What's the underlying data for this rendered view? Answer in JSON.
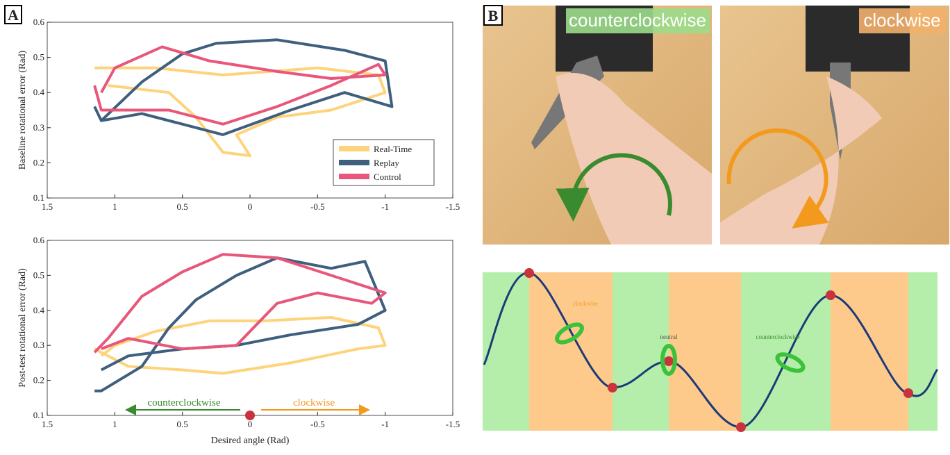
{
  "chart_data": [
    {
      "type": "line",
      "panel": "A",
      "ylabel": "Baseline rotational error (Rad)",
      "xlim": [
        1.5,
        -1.5
      ],
      "xticks": [
        1.5,
        1,
        0.5,
        0,
        -0.5,
        -1,
        -1.5
      ],
      "ylim": [
        0.1,
        0.6
      ],
      "yticks": [
        0.1,
        0.2,
        0.3,
        0.4,
        0.5,
        0.6
      ],
      "legend": "lower right",
      "series": [
        {
          "name": "Real-Time",
          "color": "#fdd47c",
          "x": [
            1.15,
            0.7,
            0.2,
            -0.5,
            -0.95,
            -1.0,
            -0.6,
            -0.2,
            0.1,
            0.0,
            0.2,
            0.4,
            0.6,
            1.05
          ],
          "values": [
            0.47,
            0.47,
            0.45,
            0.47,
            0.45,
            0.4,
            0.35,
            0.33,
            0.28,
            0.22,
            0.23,
            0.33,
            0.4,
            0.42
          ]
        },
        {
          "name": "Replay",
          "color": "#3e5f7e",
          "x": [
            1.15,
            1.1,
            0.8,
            0.5,
            0.25,
            -0.2,
            -0.7,
            -1.0,
            -1.05,
            -0.7,
            -0.3,
            0.2,
            0.8,
            1.1
          ],
          "values": [
            0.36,
            0.32,
            0.43,
            0.51,
            0.54,
            0.55,
            0.52,
            0.49,
            0.36,
            0.4,
            0.35,
            0.28,
            0.34,
            0.32
          ]
        },
        {
          "name": "Control",
          "color": "#e8577a",
          "x": [
            1.15,
            1.1,
            0.6,
            0.2,
            -0.2,
            -0.6,
            -0.95,
            -1.0,
            -0.6,
            -0.2,
            0.3,
            0.65,
            1.0,
            1.1
          ],
          "values": [
            0.42,
            0.35,
            0.35,
            0.31,
            0.36,
            0.42,
            0.48,
            0.45,
            0.44,
            0.46,
            0.49,
            0.53,
            0.47,
            0.4
          ]
        }
      ]
    },
    {
      "type": "line",
      "ylabel": "Post-test rotational error (Rad)",
      "xlabel": "Desired angle (Rad)",
      "xlim": [
        1.5,
        -1.5
      ],
      "xticks": [
        1.5,
        1,
        0.5,
        0,
        -0.5,
        -1,
        -1.5
      ],
      "ylim": [
        0.1,
        0.6
      ],
      "yticks": [
        0.1,
        0.2,
        0.3,
        0.4,
        0.5,
        0.6
      ],
      "annotations": [
        "counterclockwise",
        "clockwise"
      ],
      "series": [
        {
          "color": "#fdd47c",
          "x": [
            1.15,
            0.9,
            0.5,
            0.2,
            -0.3,
            -0.8,
            -1.0,
            -0.95,
            -0.6,
            -0.1,
            0.3,
            0.7,
            1.0,
            1.1
          ],
          "values": [
            0.29,
            0.24,
            0.23,
            0.22,
            0.25,
            0.29,
            0.3,
            0.35,
            0.38,
            0.37,
            0.37,
            0.34,
            0.3,
            0.27
          ]
        },
        {
          "color": "#3e5f7e",
          "x": [
            1.15,
            1.1,
            0.8,
            0.6,
            0.4,
            0.1,
            -0.2,
            -0.6,
            -0.85,
            -1.0,
            -0.8,
            -0.3,
            0.1,
            0.5,
            0.9,
            1.1
          ],
          "values": [
            0.17,
            0.17,
            0.24,
            0.35,
            0.43,
            0.5,
            0.55,
            0.52,
            0.54,
            0.4,
            0.36,
            0.33,
            0.3,
            0.29,
            0.27,
            0.23
          ]
        },
        {
          "color": "#e8577a",
          "x": [
            1.15,
            1.05,
            0.8,
            0.5,
            0.2,
            -0.2,
            -0.6,
            -1.0,
            -0.9,
            -0.5,
            -0.2,
            0.1,
            0.5,
            0.9,
            1.1
          ],
          "values": [
            0.28,
            0.32,
            0.44,
            0.51,
            0.56,
            0.55,
            0.5,
            0.45,
            0.42,
            0.45,
            0.42,
            0.3,
            0.29,
            0.32,
            0.29
          ]
        }
      ]
    }
  ],
  "panel_b": {
    "label": "B",
    "photo_left_label": "counterclockwise",
    "photo_right_label": "clockwise",
    "diagram_labels": [
      "clockwise",
      "neutral",
      "counterclockwise"
    ]
  }
}
